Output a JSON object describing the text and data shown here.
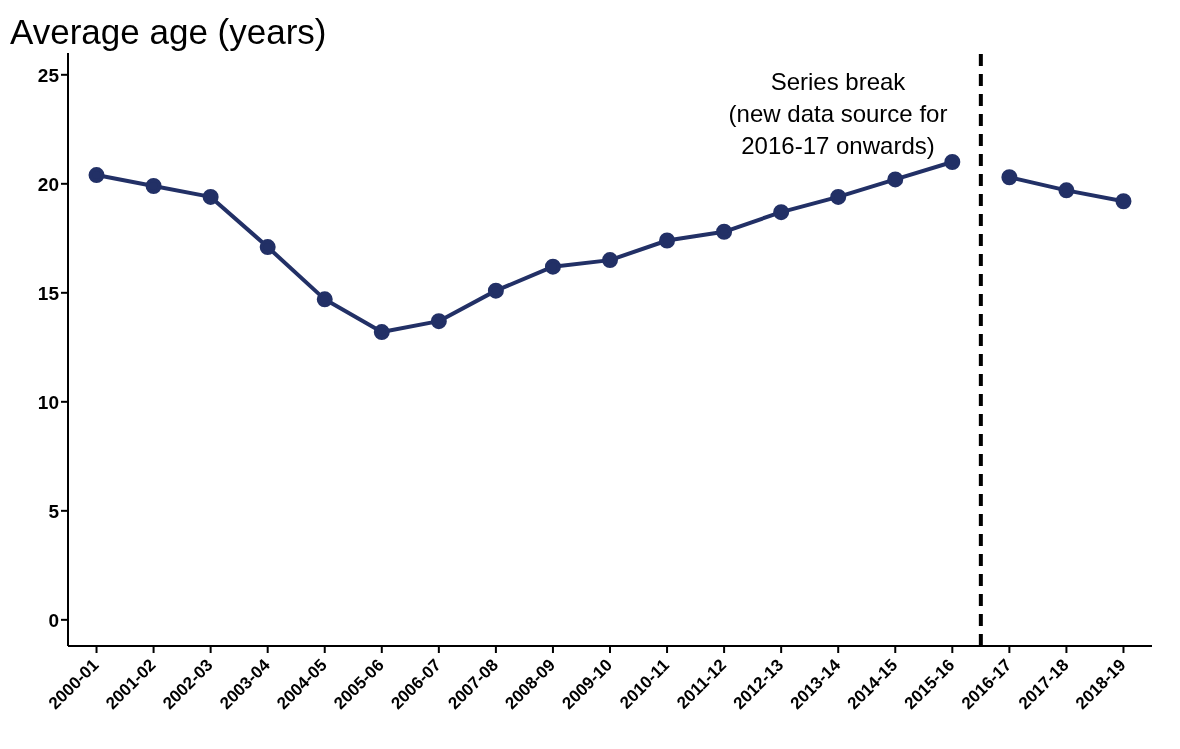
{
  "chart_data": {
    "type": "line",
    "ylabel": "Average age (years)",
    "categories": [
      "2000-01",
      "2001-02",
      "2002-03",
      "2003-04",
      "2004-05",
      "2005-06",
      "2006-07",
      "2007-08",
      "2008-09",
      "2009-10",
      "2010-11",
      "2011-12",
      "2012-13",
      "2013-14",
      "2014-15",
      "2015-16",
      "2016-17",
      "2017-18",
      "2018-19"
    ],
    "series": [
      {
        "color": "#223066",
        "values": [
          20.4,
          19.9,
          19.4,
          17.1,
          14.7,
          13.2,
          13.7,
          15.1,
          16.2,
          16.5,
          17.4,
          17.8,
          18.7,
          19.4,
          20.2,
          21.0,
          null,
          null,
          null
        ]
      },
      {
        "color": "#223066",
        "values": [
          null,
          null,
          null,
          null,
          null,
          null,
          null,
          null,
          null,
          null,
          null,
          null,
          null,
          null,
          null,
          null,
          20.3,
          19.7,
          19.2
        ]
      }
    ],
    "ylim": [
      -1.2,
      26
    ],
    "yticks": [
      0,
      5,
      10,
      15,
      20,
      25
    ],
    "annotations": [
      "Series break\n(new data source for\n2016-17 onwards)"
    ],
    "grid": false,
    "marker": "circle",
    "line_style": "solid"
  }
}
